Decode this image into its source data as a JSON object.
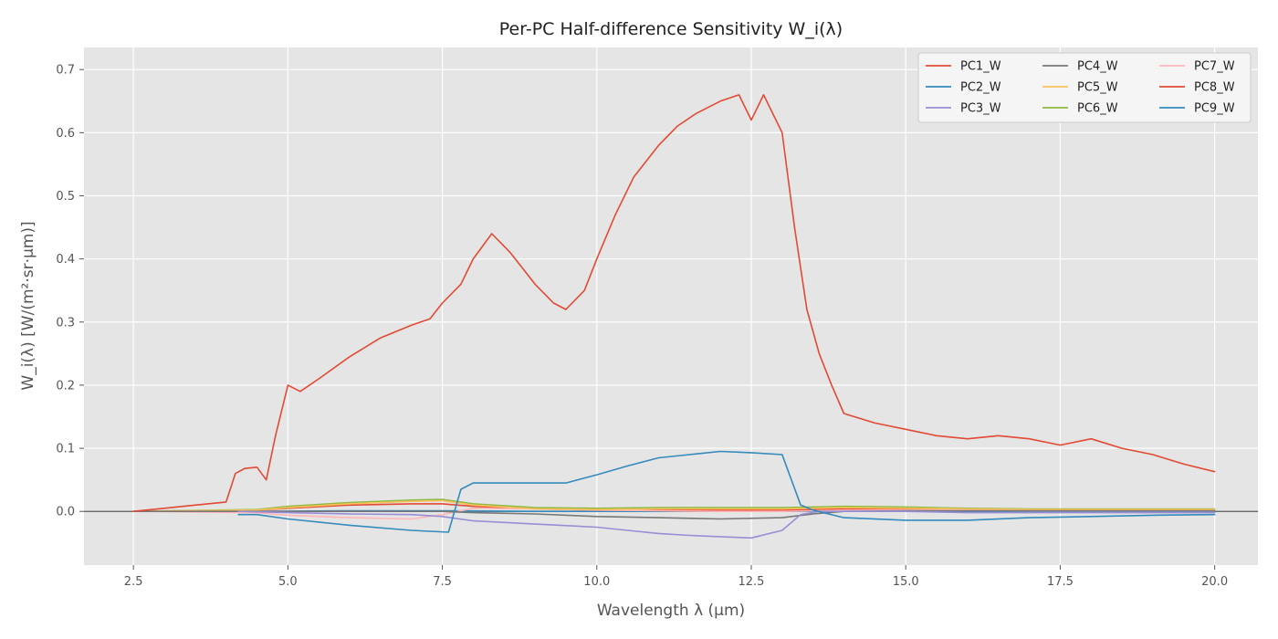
{
  "chart_data": {
    "type": "line",
    "title": "Per-PC Half-difference Sensitivity W_i(λ)",
    "xlabel": "Wavelength λ (µm)",
    "ylabel": "W_i(λ) [W/(m²·sr·µm)]",
    "xlim": [
      1.7,
      20.7
    ],
    "ylim": [
      -0.085,
      0.735
    ],
    "xticks": [
      2.5,
      5.0,
      7.5,
      10.0,
      12.5,
      15.0,
      17.5,
      20.0
    ],
    "xtick_labels": [
      "2.5",
      "5.0",
      "7.5",
      "10.0",
      "12.5",
      "15.0",
      "17.5",
      "20.0"
    ],
    "yticks": [
      0.0,
      0.1,
      0.2,
      0.3,
      0.4,
      0.5,
      0.6,
      0.7
    ],
    "ytick_labels": [
      "0.0",
      "0.1",
      "0.2",
      "0.3",
      "0.4",
      "0.5",
      "0.6",
      "0.7"
    ],
    "grid": true,
    "zero_line": true,
    "legend": {
      "placement": "top-right",
      "columns": 3
    },
    "series": [
      {
        "name": "PC1_W",
        "color": "#e24a33",
        "x": [
          2.5,
          3.0,
          3.5,
          4.0,
          4.15,
          4.3,
          4.5,
          4.65,
          4.8,
          5.0,
          5.2,
          5.5,
          6.0,
          6.5,
          7.0,
          7.3,
          7.5,
          7.8,
          8.0,
          8.3,
          8.6,
          9.0,
          9.3,
          9.5,
          9.8,
          10.0,
          10.3,
          10.6,
          11.0,
          11.3,
          11.6,
          12.0,
          12.3,
          12.5,
          12.7,
          13.0,
          13.2,
          13.4,
          13.6,
          13.8,
          14.0,
          14.5,
          15.0,
          15.5,
          16.0,
          16.5,
          17.0,
          17.5,
          18.0,
          18.5,
          19.0,
          19.5,
          20.0
        ],
        "values": [
          0.0,
          0.005,
          0.01,
          0.015,
          0.06,
          0.068,
          0.07,
          0.05,
          0.12,
          0.2,
          0.19,
          0.21,
          0.245,
          0.275,
          0.295,
          0.305,
          0.33,
          0.36,
          0.4,
          0.44,
          0.41,
          0.36,
          0.33,
          0.32,
          0.35,
          0.4,
          0.47,
          0.53,
          0.58,
          0.61,
          0.63,
          0.65,
          0.66,
          0.62,
          0.66,
          0.6,
          0.45,
          0.32,
          0.25,
          0.2,
          0.155,
          0.14,
          0.13,
          0.12,
          0.115,
          0.12,
          0.115,
          0.105,
          0.115,
          0.1,
          0.09,
          0.075,
          0.063
        ]
      },
      {
        "name": "PC2_W",
        "color": "#348abd",
        "x": [
          4.2,
          4.5,
          5.0,
          6.0,
          7.0,
          7.6,
          7.8,
          8.0,
          9.0,
          9.5,
          10.0,
          10.5,
          11.0,
          11.5,
          12.0,
          12.5,
          13.0,
          13.3,
          13.5,
          14.0,
          15.0,
          16.0,
          17.0,
          18.0,
          19.0,
          20.0
        ],
        "values": [
          -0.005,
          -0.005,
          -0.012,
          -0.022,
          -0.03,
          -0.033,
          0.035,
          0.045,
          0.045,
          0.045,
          0.058,
          0.072,
          0.085,
          0.09,
          0.095,
          0.093,
          0.09,
          0.01,
          0.002,
          -0.01,
          -0.014,
          -0.014,
          -0.01,
          -0.008,
          -0.006,
          -0.005
        ]
      },
      {
        "name": "PC3_W",
        "color": "#988ed5",
        "x": [
          4.2,
          5.0,
          6.0,
          7.0,
          7.5,
          8.0,
          9.0,
          10.0,
          10.5,
          11.0,
          11.5,
          12.0,
          12.5,
          13.0,
          13.3,
          13.6,
          14.0,
          15.0,
          16.0,
          17.0,
          18.0,
          19.0,
          20.0
        ],
        "values": [
          0.0,
          -0.002,
          -0.004,
          -0.005,
          -0.008,
          -0.015,
          -0.02,
          -0.025,
          -0.03,
          -0.035,
          -0.038,
          -0.04,
          -0.042,
          -0.03,
          -0.005,
          0.0,
          0.0,
          0.0,
          -0.002,
          -0.002,
          -0.002,
          -0.002,
          -0.002
        ]
      },
      {
        "name": "PC4_W",
        "color": "#777777",
        "x": [
          2.5,
          4.5,
          6.0,
          7.5,
          8.0,
          9.0,
          10.0,
          11.0,
          12.0,
          13.0,
          13.5,
          14.0,
          15.0,
          16.0,
          17.0,
          18.0,
          19.0,
          20.0
        ],
        "values": [
          0.0,
          0.0,
          0.0,
          0.0,
          -0.002,
          -0.004,
          -0.008,
          -0.01,
          -0.012,
          -0.01,
          -0.004,
          0.0,
          0.001,
          0.001,
          0.001,
          0.001,
          0.001,
          0.001
        ]
      },
      {
        "name": "PC5_W",
        "color": "#fbc15e",
        "x": [
          2.5,
          4.5,
          5.0,
          6.0,
          7.0,
          7.5,
          8.0,
          9.0,
          10.0,
          11.0,
          12.0,
          13.0,
          14.0,
          15.0,
          16.0,
          17.0,
          18.0,
          19.0,
          20.0
        ],
        "values": [
          0.0,
          0.002,
          0.006,
          0.012,
          0.016,
          0.017,
          0.01,
          0.004,
          0.003,
          0.004,
          0.004,
          0.004,
          0.006,
          0.005,
          0.004,
          0.003,
          0.003,
          0.003,
          0.003
        ]
      },
      {
        "name": "PC6_W",
        "color": "#8eba42",
        "x": [
          2.5,
          4.5,
          5.0,
          6.0,
          7.0,
          7.5,
          8.0,
          9.0,
          10.0,
          11.0,
          12.0,
          13.0,
          14.0,
          15.0,
          16.0,
          17.0,
          18.0,
          19.0,
          20.0
        ],
        "values": [
          0.0,
          0.003,
          0.008,
          0.014,
          0.018,
          0.019,
          0.012,
          0.006,
          0.005,
          0.006,
          0.006,
          0.006,
          0.008,
          0.007,
          0.005,
          0.004,
          0.004,
          0.004,
          0.004
        ]
      },
      {
        "name": "PC7_W",
        "color": "#ffb5b8",
        "x": [
          2.5,
          4.5,
          5.0,
          6.0,
          7.0,
          7.5,
          8.0,
          9.0,
          10.0,
          11.0,
          12.0,
          13.0,
          14.0,
          15.0,
          16.0,
          17.0,
          18.0,
          19.0,
          20.0
        ],
        "values": [
          0.0,
          -0.002,
          -0.006,
          -0.01,
          -0.012,
          -0.005,
          0.005,
          0.004,
          0.002,
          0.001,
          0.0,
          0.0,
          0.002,
          0.002,
          0.002,
          0.001,
          0.001,
          0.001,
          0.001
        ]
      },
      {
        "name": "PC8_W",
        "color": "#e24a33",
        "x": [
          2.5,
          4.5,
          5.0,
          6.0,
          7.0,
          7.5,
          8.0,
          9.0,
          10.0,
          11.0,
          12.0,
          13.0,
          14.0,
          15.0,
          16.0,
          17.0,
          18.0,
          19.0,
          20.0
        ],
        "values": [
          0.0,
          0.002,
          0.005,
          0.01,
          0.012,
          0.012,
          0.008,
          0.004,
          0.002,
          0.002,
          0.002,
          0.002,
          0.004,
          0.003,
          0.003,
          0.002,
          0.002,
          0.002,
          0.002
        ]
      },
      {
        "name": "PC9_W",
        "color": "#348abd",
        "x": [
          2.5,
          4.5,
          6.0,
          7.5,
          9.0,
          10.5,
          12.0,
          13.5,
          15.0,
          16.5,
          18.0,
          19.5,
          20.0
        ],
        "values": [
          0.0,
          0.0,
          0.001,
          0.001,
          0.0,
          0.0,
          0.001,
          0.0,
          0.0,
          0.0,
          0.0,
          0.0,
          0.0
        ]
      }
    ]
  }
}
